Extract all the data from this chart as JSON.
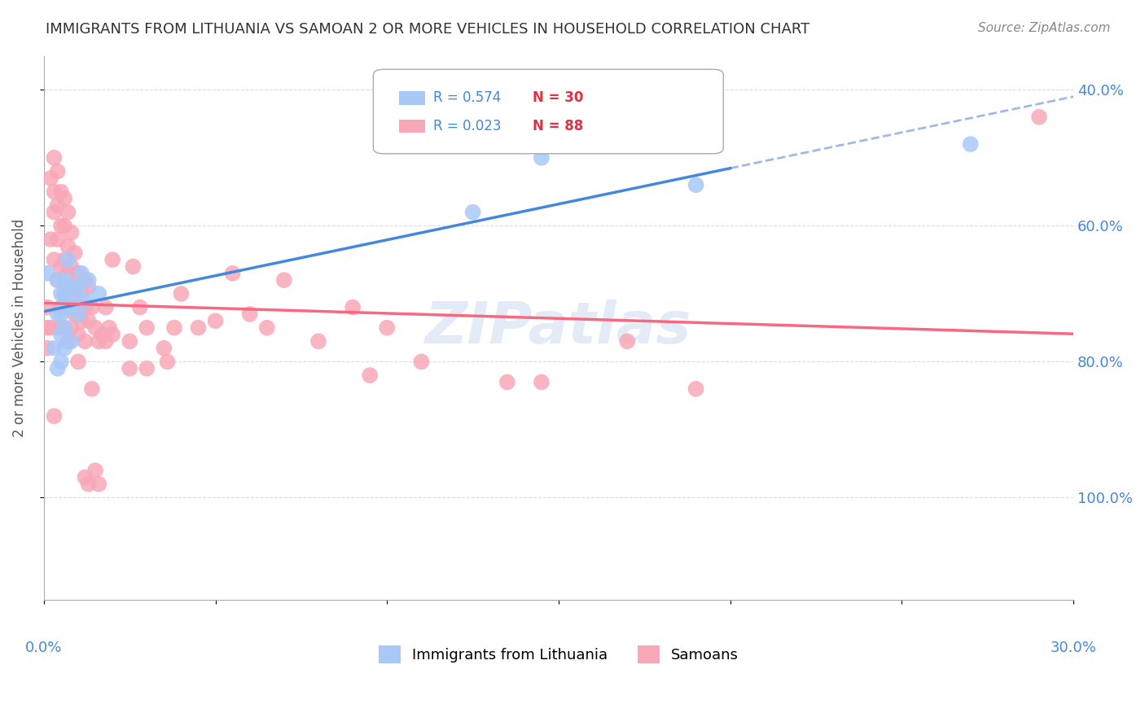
{
  "title": "IMMIGRANTS FROM LITHUANIA VS SAMOAN 2 OR MORE VEHICLES IN HOUSEHOLD CORRELATION CHART",
  "source": "Source: ZipAtlas.com",
  "ylabel": "2 or more Vehicles in Household",
  "legend1_r": "0.574",
  "legend1_n": "30",
  "legend2_r": "0.023",
  "legend2_n": "88",
  "blue_color": "#a8c8f8",
  "pink_color": "#f8a8b8",
  "blue_line_color": "#4488dd",
  "pink_line_color": "#f86880",
  "blue_dashed_color": "#88aadd",
  "title_color": "#333333",
  "source_color": "#888888",
  "axis_label_color": "#4488dd",
  "watermark_color": "#c8d8f0",
  "grid_color": "#dddddd",
  "legend_r_color": "#4488dd",
  "legend_n_color": "#dd3344",
  "blue_scatter_x": [
    0.001,
    0.003,
    0.004,
    0.004,
    0.004,
    0.005,
    0.005,
    0.005,
    0.005,
    0.006,
    0.006,
    0.006,
    0.006,
    0.006,
    0.007,
    0.007,
    0.008,
    0.008,
    0.008,
    0.009,
    0.01,
    0.01,
    0.011,
    0.012,
    0.013,
    0.016,
    0.125,
    0.145,
    0.19,
    0.27
  ],
  "blue_scatter_y": [
    0.73,
    0.62,
    0.59,
    0.72,
    0.67,
    0.7,
    0.67,
    0.64,
    0.6,
    0.72,
    0.7,
    0.68,
    0.65,
    0.62,
    0.75,
    0.68,
    0.71,
    0.68,
    0.63,
    0.7,
    0.71,
    0.67,
    0.73,
    0.69,
    0.72,
    0.7,
    0.82,
    0.9,
    0.86,
    0.92
  ],
  "pink_scatter_x": [
    0.001,
    0.001,
    0.001,
    0.002,
    0.002,
    0.002,
    0.003,
    0.003,
    0.003,
    0.003,
    0.003,
    0.004,
    0.004,
    0.004,
    0.004,
    0.004,
    0.005,
    0.005,
    0.005,
    0.005,
    0.006,
    0.006,
    0.006,
    0.006,
    0.006,
    0.007,
    0.007,
    0.007,
    0.007,
    0.007,
    0.008,
    0.008,
    0.008,
    0.008,
    0.009,
    0.009,
    0.009,
    0.01,
    0.01,
    0.01,
    0.01,
    0.011,
    0.011,
    0.012,
    0.012,
    0.012,
    0.012,
    0.013,
    0.013,
    0.013,
    0.014,
    0.014,
    0.015,
    0.015,
    0.016,
    0.016,
    0.017,
    0.018,
    0.018,
    0.019,
    0.02,
    0.02,
    0.025,
    0.025,
    0.026,
    0.028,
    0.03,
    0.03,
    0.035,
    0.036,
    0.038,
    0.04,
    0.045,
    0.05,
    0.055,
    0.06,
    0.065,
    0.07,
    0.08,
    0.09,
    0.095,
    0.1,
    0.11,
    0.135,
    0.145,
    0.17,
    0.19,
    0.29
  ],
  "pink_scatter_y": [
    0.68,
    0.65,
    0.62,
    0.87,
    0.78,
    0.65,
    0.9,
    0.85,
    0.82,
    0.75,
    0.52,
    0.88,
    0.83,
    0.78,
    0.72,
    0.65,
    0.85,
    0.8,
    0.74,
    0.68,
    0.84,
    0.8,
    0.75,
    0.7,
    0.65,
    0.82,
    0.77,
    0.73,
    0.68,
    0.63,
    0.79,
    0.74,
    0.7,
    0.65,
    0.76,
    0.71,
    0.67,
    0.73,
    0.68,
    0.64,
    0.6,
    0.7,
    0.66,
    0.72,
    0.68,
    0.63,
    0.43,
    0.71,
    0.66,
    0.42,
    0.68,
    0.56,
    0.65,
    0.44,
    0.63,
    0.42,
    0.64,
    0.68,
    0.63,
    0.65,
    0.64,
    0.75,
    0.63,
    0.59,
    0.74,
    0.68,
    0.65,
    0.59,
    0.62,
    0.6,
    0.65,
    0.7,
    0.65,
    0.66,
    0.73,
    0.67,
    0.65,
    0.72,
    0.63,
    0.68,
    0.58,
    0.65,
    0.6,
    0.57,
    0.57,
    0.63,
    0.56,
    0.96
  ],
  "xlim": [
    0,
    0.3
  ],
  "ylim": [
    0.25,
    1.05
  ],
  "yticks": [
    0.4,
    0.6,
    0.8,
    1.0
  ],
  "xticks": [
    0.0,
    0.05,
    0.1,
    0.15,
    0.2,
    0.25,
    0.3
  ],
  "figsize": [
    14.06,
    8.92
  ],
  "dpi": 100
}
